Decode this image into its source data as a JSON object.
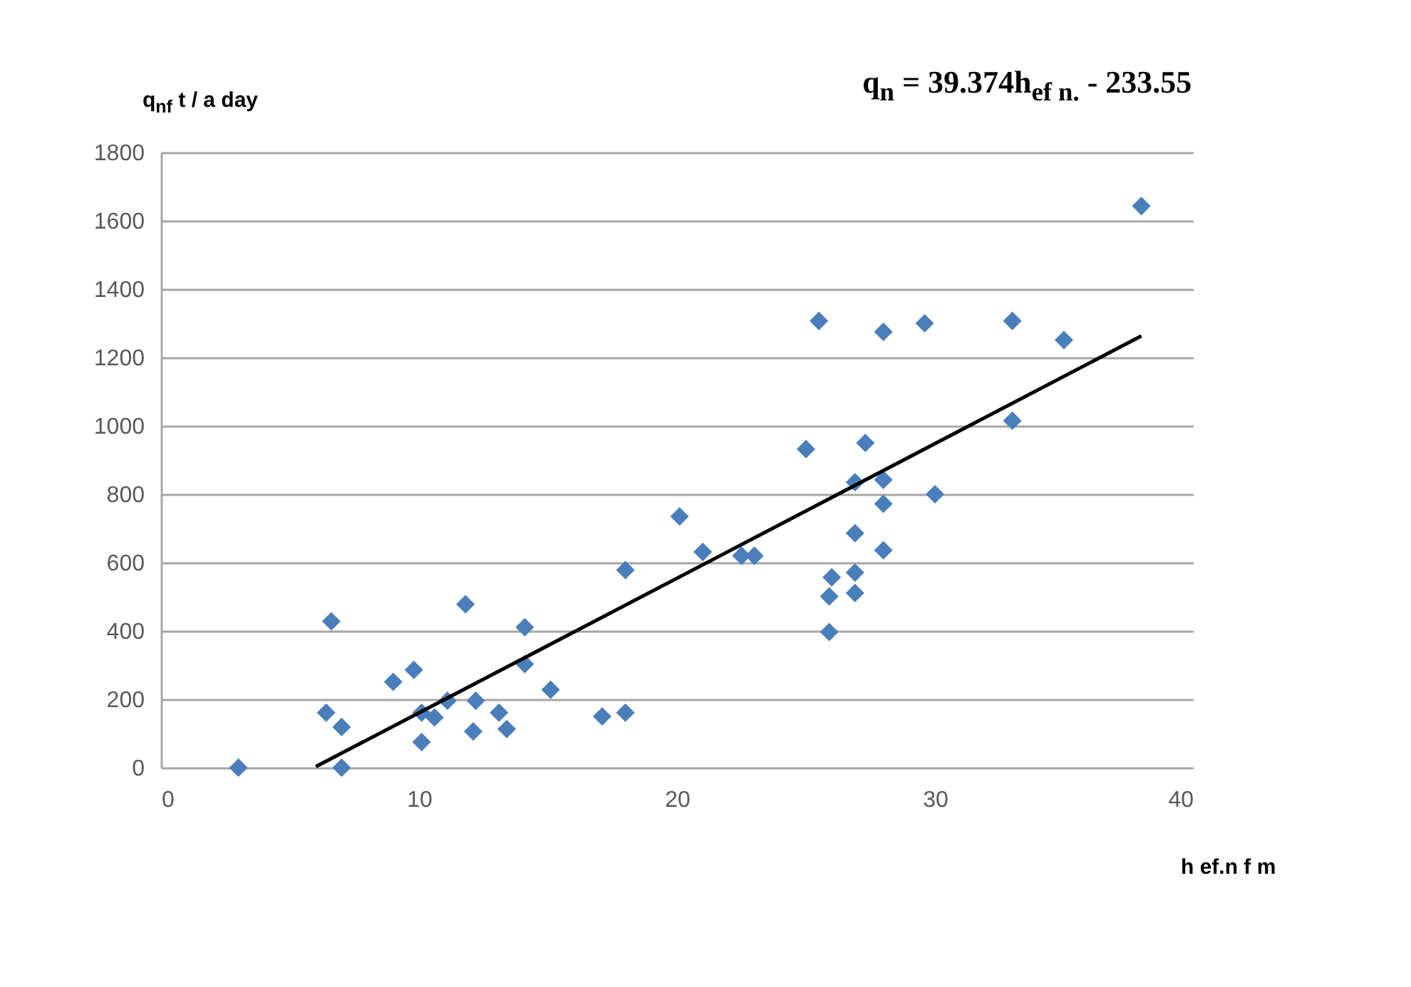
{
  "chart_data": {
    "type": "scatter",
    "xlabel": "h ef.n f m",
    "ylabel": "q$_{nf}$ t / a day",
    "annotations": [
      "q$_{n}$ = 39.374h$_{ef n.}$ - 233.55"
    ],
    "xlim": [
      0,
      40
    ],
    "xticks": [
      0,
      10,
      20,
      30,
      40
    ],
    "ylim": [
      0,
      1800
    ],
    "yticks": [
      0,
      200,
      400,
      600,
      800,
      1000,
      1200,
      1400,
      1600,
      1800
    ],
    "grid": "y",
    "marker": "diamond",
    "series": [
      {
        "color": "#4a7ebb",
        "x": [
          3.0,
          6.6,
          6.4,
          7.0,
          7.0,
          9.0,
          9.8,
          10.1,
          10.1,
          10.6,
          11.1,
          11.8,
          12.1,
          12.2,
          13.1,
          13.4,
          14.1,
          14.1,
          15.1,
          17.1,
          18.0,
          18.0,
          20.1,
          21.0,
          22.5,
          23.0,
          25.0,
          25.5,
          25.9,
          25.9,
          26.0,
          26.9,
          26.9,
          26.9,
          26.9,
          27.3,
          28.0,
          28.0,
          28.0,
          28.0,
          29.6,
          30.0,
          33.0,
          33.0,
          35.0,
          38.0
        ],
        "values": [
          0,
          428,
          161,
          119,
          0,
          251,
          286,
          161,
          75,
          147,
          196,
          478,
          106,
          196,
          161,
          113,
          411,
          303,
          228,
          150,
          161,
          578,
          735,
          631,
          620,
          620,
          932,
          1307,
          397,
          501,
          557,
          571,
          511,
          686,
          835,
          950,
          842,
          772,
          636,
          1275,
          1300,
          800,
          1307,
          1015,
          1251,
          1643
        ]
      },
      {
        "type": "line",
        "color": "#000000",
        "marker": "none",
        "x": [
          6,
          38
        ],
        "values": [
          3,
          1263
        ]
      }
    ]
  }
}
